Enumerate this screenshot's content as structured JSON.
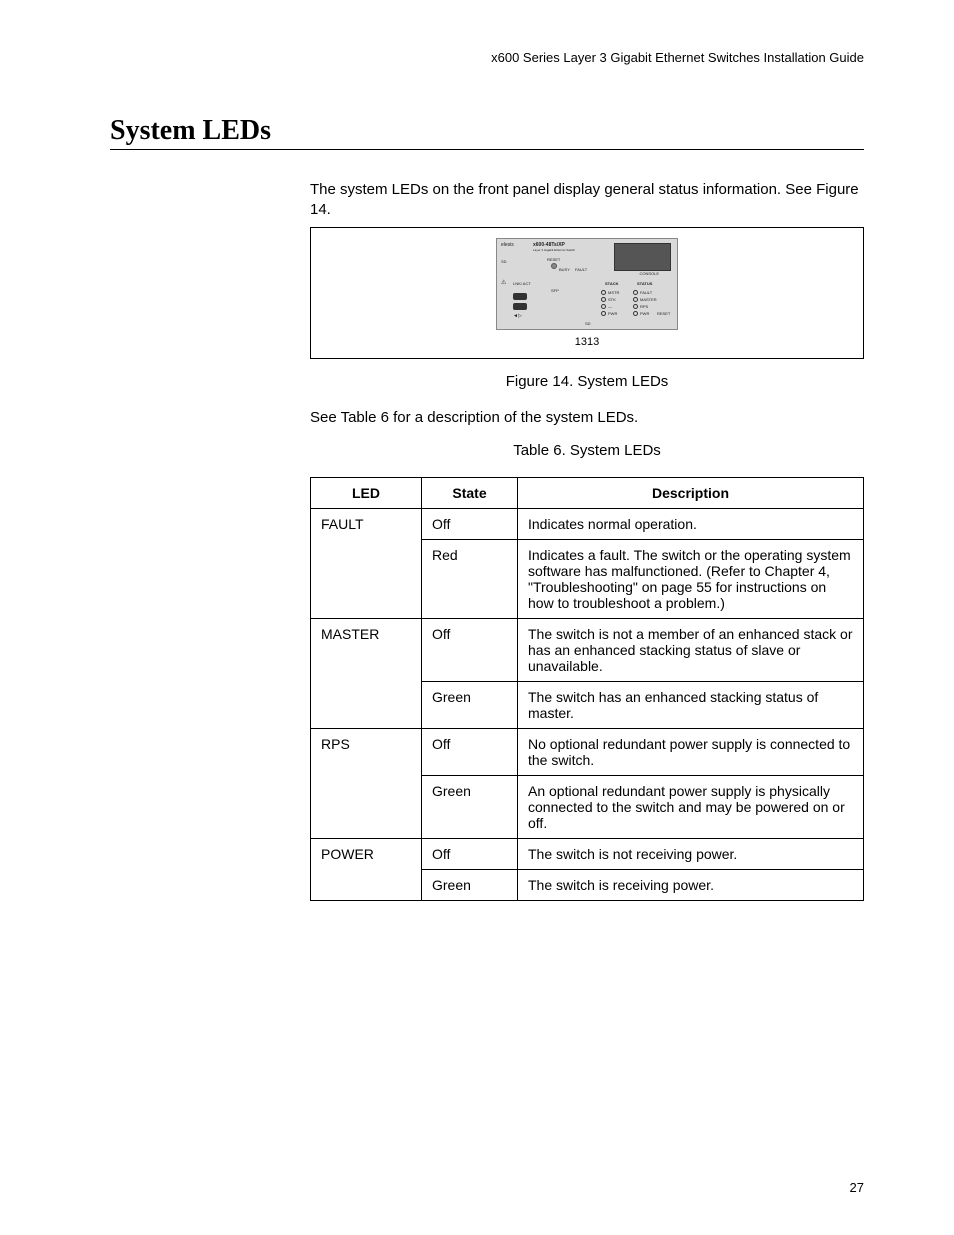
{
  "header": {
    "running": "x600 Series Layer 3 Gigabit Ethernet Switches Installation Guide"
  },
  "title": "System LEDs",
  "intro": "The system LEDs on the front panel display general status information. See Figure 14.",
  "figure": {
    "caption": "Figure 14. System LEDs",
    "number": "1313",
    "panel": {
      "brand": "elesis",
      "model": "x600-48Ts/XP",
      "sub": "Layer 3 Gigabit Ethernet Switch",
      "console": "CONSOLE",
      "reset": "RESET",
      "busy": "BUSY",
      "fault": "FAULT",
      "sd_top": "SD",
      "lnk": "LNK/   ACT",
      "sfp": "SFP",
      "stack": "STACK",
      "status": "STATUS",
      "leds_left": [
        "MSTR",
        "STK",
        "—",
        "PWR"
      ],
      "leds_right": [
        "FAULT",
        "MASTER",
        "RPS",
        "PWR"
      ],
      "reset_btn": "RESET",
      "sd_bottom": "SD",
      "arrow": "◄▷"
    }
  },
  "para2": "See Table 6 for a description of the system LEDs.",
  "table_caption": "Table 6. System LEDs",
  "table": {
    "headers": [
      "LED",
      "State",
      "Description"
    ],
    "rows": [
      {
        "led": "FAULT",
        "rowspan": 2,
        "state": "Off",
        "desc": "Indicates normal operation."
      },
      {
        "led": "",
        "state": "Red",
        "desc": "Indicates a fault. The switch or the operating system software has malfunctioned. (Refer to Chapter 4, \"Troubleshooting\" on page 55 for instructions on how to troubleshoot a problem.)"
      },
      {
        "led": "MASTER",
        "rowspan": 2,
        "state": "Off",
        "desc": "The switch is not a member of an enhanced stack or has an enhanced stacking status of slave or unavailable."
      },
      {
        "led": "",
        "state": "Green",
        "desc": "The switch has an enhanced stacking status of master."
      },
      {
        "led": "RPS",
        "rowspan": 2,
        "state": "Off",
        "desc": "No optional redundant power supply is connected to the switch."
      },
      {
        "led": "",
        "state": "Green",
        "desc": "An optional redundant power supply is physically connected to the switch and may be powered on or off."
      },
      {
        "led": "POWER",
        "rowspan": 2,
        "state": "Off",
        "desc": "The switch is not receiving power."
      },
      {
        "led": "",
        "state": "Green",
        "desc": "The switch is receiving power."
      }
    ]
  },
  "page_number": "27"
}
